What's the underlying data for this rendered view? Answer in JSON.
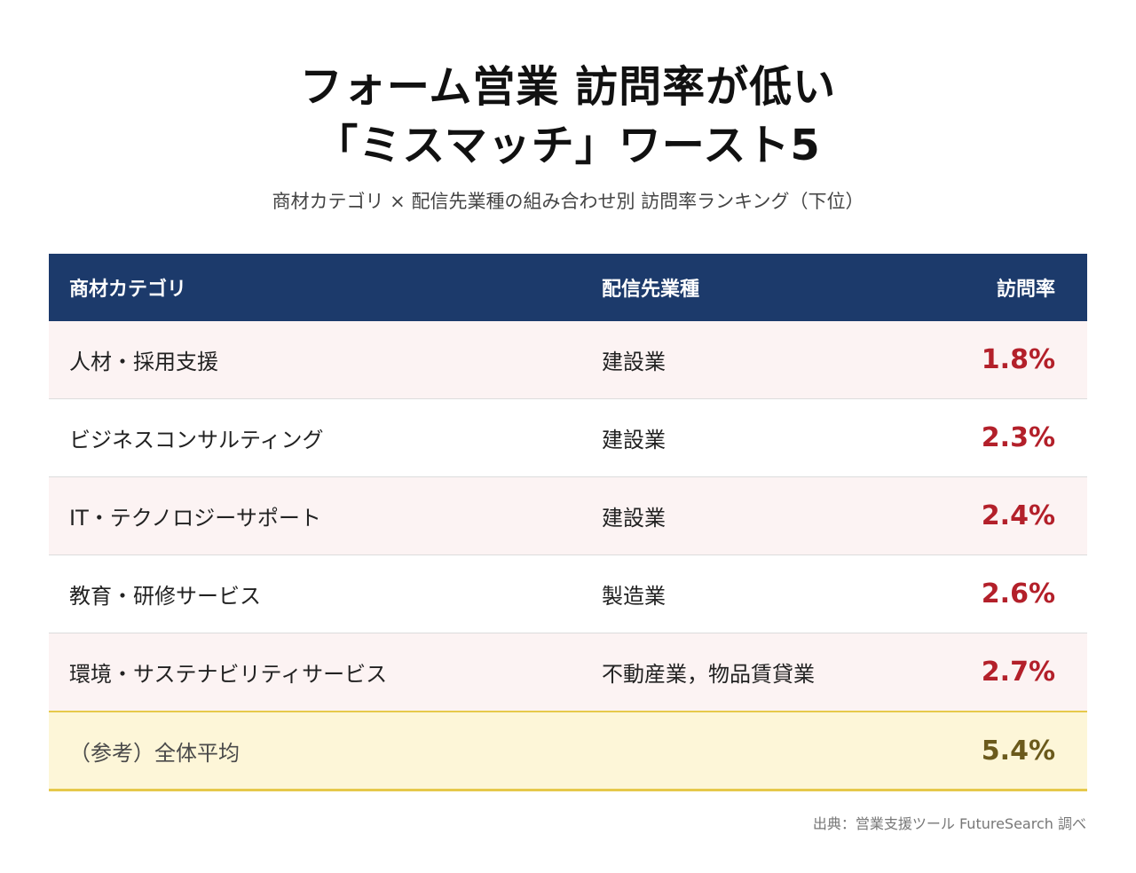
{
  "title_line1": "フォーム営業 訪問率が低い",
  "title_line2": "「ミスマッチ」ワースト5",
  "subtitle": "商材カテゴリ × 配信先業種の組み合わせ別 訪問率ランキング（下位）",
  "source": "出典：営業支援ツール FutureSearch 調べ",
  "colors": {
    "header_bg": "#1c3a6b",
    "rate_red": "#b3202a",
    "avg_bg": "#fdf6d8",
    "avg_border": "#e6c94b"
  },
  "chart_data": {
    "type": "table",
    "columns": [
      "商材カテゴリ",
      "配信先業種",
      "訪問率"
    ],
    "rows": [
      {
        "category": "人材・採用支援",
        "industry": "建設業",
        "rate": "1.8%"
      },
      {
        "category": "ビジネスコンサルティング",
        "industry": "建設業",
        "rate": "2.3%"
      },
      {
        "category": "IT・テクノロジーサポート",
        "industry": "建設業",
        "rate": "2.4%"
      },
      {
        "category": "教育・研修サービス",
        "industry": "製造業",
        "rate": "2.6%"
      },
      {
        "category": "環境・サステナビリティサービス",
        "industry": "不動産業，物品賃貸業",
        "rate": "2.7%"
      }
    ],
    "average": {
      "category": "（参考）全体平均",
      "industry": "",
      "rate": "5.4%"
    }
  }
}
